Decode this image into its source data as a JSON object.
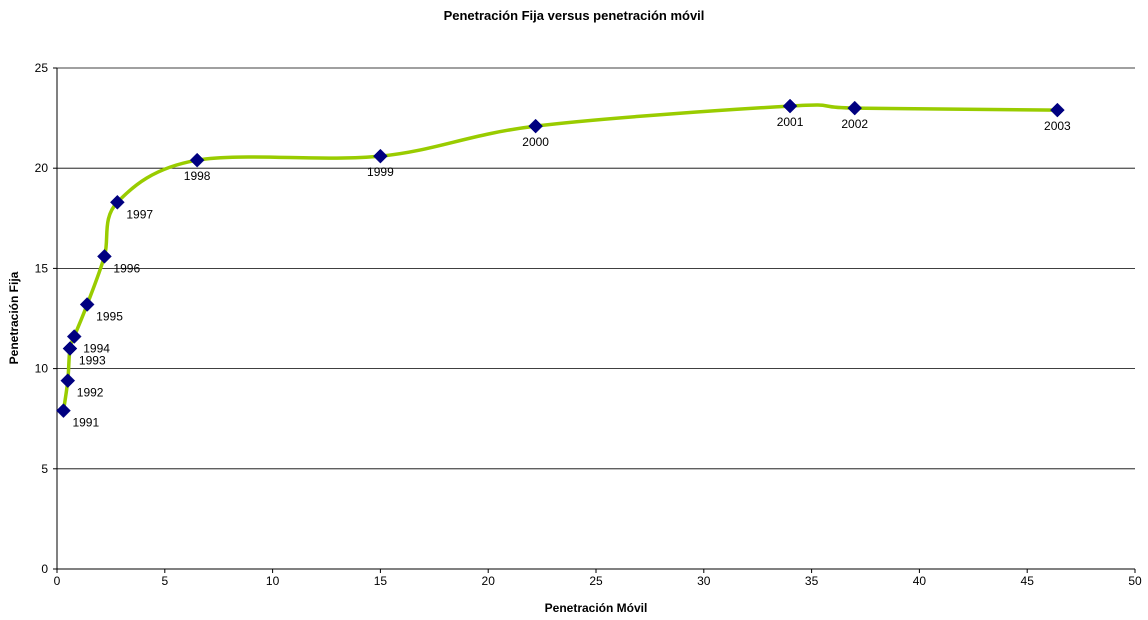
{
  "chart_data": {
    "type": "scatter",
    "title": "Penetración Fija versus penetración móvil",
    "xlabel": "Penetración Móvil",
    "ylabel": "Penetración Fija",
    "xlim": [
      0,
      50
    ],
    "ylim": [
      0,
      25
    ],
    "x_ticks": [
      0,
      5,
      10,
      15,
      20,
      25,
      30,
      35,
      40,
      45,
      50
    ],
    "y_ticks": [
      0,
      5,
      10,
      15,
      20,
      25
    ],
    "grid": "horizontal",
    "line_color": "#99cc00",
    "marker_color": "#000080",
    "points": [
      {
        "label": "1991",
        "x": 0.3,
        "y": 7.9
      },
      {
        "label": "1992",
        "x": 0.5,
        "y": 9.4
      },
      {
        "label": "1993",
        "x": 0.6,
        "y": 11.0
      },
      {
        "label": "1994",
        "x": 0.8,
        "y": 11.6
      },
      {
        "label": "1995",
        "x": 1.4,
        "y": 13.2
      },
      {
        "label": "1996",
        "x": 2.2,
        "y": 15.6
      },
      {
        "label": "1997",
        "x": 2.8,
        "y": 18.3
      },
      {
        "label": "1998",
        "x": 6.5,
        "y": 20.4
      },
      {
        "label": "1999",
        "x": 15.0,
        "y": 20.6
      },
      {
        "label": "2000",
        "x": 22.2,
        "y": 22.1
      },
      {
        "label": "2001",
        "x": 34.0,
        "y": 23.1
      },
      {
        "label": "2002",
        "x": 37.0,
        "y": 23.0
      },
      {
        "label": "2003",
        "x": 46.4,
        "y": 22.9
      }
    ]
  }
}
